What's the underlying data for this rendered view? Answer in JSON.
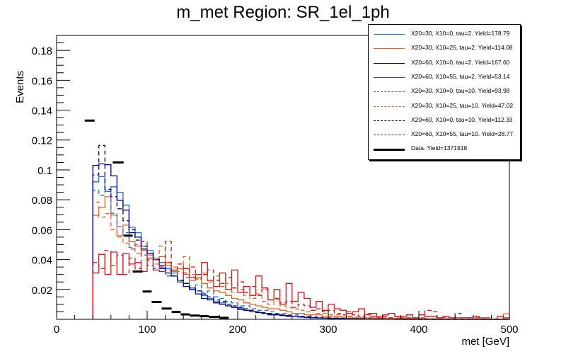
{
  "chart_data": {
    "type": "histogram",
    "title": "m_met Region: SR_1el_1ph",
    "xlabel": "met [GeV]",
    "ylabel": "Events",
    "xlim": [
      0,
      500
    ],
    "ylim": [
      0,
      0.19
    ],
    "xticks": [
      0,
      100,
      200,
      300,
      400,
      500
    ],
    "xtick_labels": [
      "0",
      "100",
      "200",
      "300",
      "400",
      "500"
    ],
    "yticks": [
      0.02,
      0.04,
      0.06,
      0.08,
      0.1,
      0.12,
      0.14,
      0.16,
      0.18
    ],
    "ytick_labels": [
      "0.02",
      "0.04",
      "0.06",
      "0.08",
      "0.1",
      "0.12",
      "0.14",
      "0.16",
      "0.18"
    ],
    "grid": false,
    "legend_position": "top-right",
    "bin_start": 40,
    "bin_width": 6.6667,
    "series": [
      {
        "name": "X20=30, X10=0, tau=2. Yield=178.79",
        "color": "#1f6fd6",
        "style": "solid",
        "values": [
          0.092,
          0.0955,
          0.0856,
          0.0887,
          0.085,
          0.0764,
          0.0616,
          0.058,
          0.049,
          0.046,
          0.041,
          0.038,
          0.034,
          0.031,
          0.026,
          0.024,
          0.021,
          0.019,
          0.016,
          0.014,
          0.012,
          0.011,
          0.009,
          0.008,
          0.0075,
          0.006,
          0.005,
          0.0045,
          0.004,
          0.0035,
          0.003,
          0.0025,
          0.002,
          0.002,
          0.0015,
          0.0012,
          0.001,
          0.001,
          0.0008,
          0.0006,
          0.0005,
          0.0005,
          0.0004,
          0.0003,
          0.0003,
          0.0002,
          0.0002,
          0.0001,
          0.0001,
          0.0001,
          0,
          0,
          0,
          0,
          0,
          0,
          0,
          0,
          0,
          0,
          0,
          0,
          0,
          0,
          0,
          0,
          0,
          0,
          0
        ]
      },
      {
        "name": "X20=30, X10=25, tau=2. Yield=114.08",
        "color": "#e8641a",
        "style": "solid",
        "values": [
          0.0696,
          0.0748,
          0.082,
          0.0697,
          0.056,
          0.063,
          0.052,
          0.049,
          0.046,
          0.043,
          0.04,
          0.042,
          0.036,
          0.032,
          0.034,
          0.03,
          0.026,
          0.028,
          0.024,
          0.021,
          0.019,
          0.018,
          0.016,
          0.014,
          0.013,
          0.011,
          0.01,
          0.009,
          0.008,
          0.007,
          0.007,
          0.006,
          0.005,
          0.004,
          0.004,
          0.003,
          0.003,
          0.003,
          0.002,
          0.002,
          0.002,
          0.0015,
          0.0015,
          0.001,
          0.001,
          0.001,
          0.0008,
          0.0008,
          0.0006,
          0.0006,
          0.0005,
          0.0005,
          0.0004,
          0.0004,
          0.0003,
          0.0003,
          0.0002,
          0.0002,
          0.0001,
          0.0001,
          0.0001,
          0.0001,
          0.0002,
          0.0001,
          0.0001,
          0.0001,
          0.0001,
          0.0001,
          0.0036
        ]
      },
      {
        "name": "X20=60, X10=0, tau=2. Yield=167.60",
        "color": "#000080",
        "style": "solid",
        "values": [
          0.103,
          0.104,
          0.1035,
          0.096,
          0.0796,
          0.073,
          0.058,
          0.055,
          0.047,
          0.044,
          0.04,
          0.034,
          0.031,
          0.029,
          0.025,
          0.022,
          0.02,
          0.017,
          0.014,
          0.013,
          0.011,
          0.01,
          0.009,
          0.008,
          0.0065,
          0.006,
          0.005,
          0.0045,
          0.004,
          0.003,
          0.003,
          0.0025,
          0.002,
          0.002,
          0.0015,
          0.0012,
          0.001,
          0.0009,
          0.0008,
          0.0006,
          0.0005,
          0.0004,
          0.0004,
          0.0003,
          0.0003,
          0.0002,
          0.0002,
          0.0001,
          0.0001,
          0.0001,
          0,
          0,
          0,
          0,
          0,
          0,
          0,
          0,
          0,
          0,
          0,
          0,
          0,
          0,
          0,
          0,
          0,
          0,
          0
        ]
      },
      {
        "name": "X20=60, X10=55, tau=2. Yield=53.14",
        "color": "#dd1111",
        "style": "solid",
        "values": [
          0.031,
          0.0435,
          0.03,
          0.045,
          0.03,
          0.044,
          0.037,
          0.038,
          0.032,
          0.041,
          0.033,
          0.032,
          0.038,
          0.033,
          0.025,
          0.034,
          0.028,
          0.03,
          0.038,
          0.026,
          0.022,
          0.031,
          0.02,
          0.033,
          0.018,
          0.022,
          0.016,
          0.029,
          0.021,
          0.013,
          0.02,
          0.01,
          0.024,
          0.012,
          0.018,
          0.014,
          0.008,
          0.012,
          0.006,
          0.01,
          0.007,
          0.006,
          0.004,
          0.005,
          0.007,
          0.003,
          0.004,
          0.002,
          0.003,
          0.004,
          0.002,
          0.002,
          0.003,
          0.001,
          0.003,
          0.002,
          0.002,
          0.001,
          0.002,
          0.001,
          0.001,
          0.001,
          0.001,
          0.002,
          0.001,
          0,
          0,
          0.002,
          0.001
        ]
      },
      {
        "name": "X20=30, X10=0, tau=10. Yield=93.98",
        "color": "#1f6fd6",
        "style": "dashed",
        "values": [
          0.0864,
          0.083,
          0.0856,
          0.071,
          0.062,
          0.058,
          0.047,
          0.05,
          0.043,
          0.039,
          0.034,
          0.036,
          0.029,
          0.031,
          0.025,
          0.028,
          0.021,
          0.023,
          0.018,
          0.019,
          0.015,
          0.014,
          0.012,
          0.011,
          0.009,
          0.009,
          0.007,
          0.006,
          0.006,
          0.005,
          0.004,
          0.004,
          0.003,
          0.003,
          0.002,
          0.002,
          0.002,
          0.0015,
          0.001,
          0.001,
          0.001,
          0.0008,
          0.0006,
          0.0005,
          0.0004,
          0.0004,
          0.0003,
          0.0003,
          0.0002,
          0.0002,
          0.0001,
          0.0001,
          0.0001,
          0,
          0,
          0,
          0,
          0,
          0,
          0,
          0,
          0,
          0,
          0,
          0,
          0,
          0,
          0,
          0
        ]
      },
      {
        "name": "X20=30, X10=25, tau=10. Yield=47.02",
        "color": "#e8641a",
        "style": "dashed",
        "values": [
          0.0785,
          0.0683,
          0.0707,
          0.06,
          0.055,
          0.051,
          0.048,
          0.044,
          0.046,
          0.04,
          0.037,
          0.049,
          0.038,
          0.035,
          0.032,
          0.042,
          0.03,
          0.027,
          0.031,
          0.025,
          0.029,
          0.022,
          0.024,
          0.018,
          0.02,
          0.016,
          0.014,
          0.017,
          0.012,
          0.01,
          0.013,
          0.009,
          0.008,
          0.007,
          0.006,
          0.005,
          0.006,
          0.004,
          0.004,
          0.003,
          0.003,
          0.003,
          0.002,
          0.002,
          0.002,
          0.0015,
          0.0015,
          0.001,
          0.001,
          0.001,
          0.001,
          0.0008,
          0.0008,
          0.0006,
          0.0006,
          0.0005,
          0.0004,
          0.0004,
          0.0003,
          0.0003,
          0.0002,
          0.0002,
          0.0001,
          0.0001,
          0.0001,
          0.0001,
          0.0001,
          0.0001,
          0.0001
        ]
      },
      {
        "name": "X20=60, X10=0, tau=10. Yield=112.33",
        "color": "#000080",
        "style": "dashed",
        "values": [
          0.0966,
          0.1164,
          0.087,
          0.082,
          0.074,
          0.066,
          0.06,
          0.053,
          0.049,
          0.044,
          0.04,
          0.036,
          0.033,
          0.029,
          0.026,
          0.024,
          0.021,
          0.019,
          0.017,
          0.015,
          0.013,
          0.012,
          0.01,
          0.009,
          0.008,
          0.007,
          0.006,
          0.005,
          0.0045,
          0.004,
          0.0035,
          0.003,
          0.0025,
          0.002,
          0.0018,
          0.0015,
          0.0012,
          0.001,
          0.0009,
          0.0008,
          0.0006,
          0.0005,
          0.0004,
          0.0004,
          0.0003,
          0.0003,
          0.0002,
          0.0002,
          0.0001,
          0.0001,
          0.0001,
          0,
          0,
          0,
          0,
          0,
          0,
          0,
          0,
          0,
          0,
          0,
          0,
          0,
          0,
          0,
          0,
          0,
          0
        ]
      },
      {
        "name": "X20=60, X10=55, tau=10. Yield=28.77",
        "color": "#dd1111",
        "style": "dashed",
        "values": [
          0.038,
          0.034,
          0.046,
          0.036,
          0.043,
          0.03,
          0.041,
          0.034,
          0.052,
          0.036,
          0.04,
          0.035,
          0.052,
          0.033,
          0.037,
          0.031,
          0.035,
          0.027,
          0.03,
          0.033,
          0.026,
          0.024,
          0.028,
          0.021,
          0.025,
          0.018,
          0.022,
          0.016,
          0.02,
          0.013,
          0.014,
          0.011,
          0.012,
          0.008,
          0.01,
          0.009,
          0.006,
          0.007,
          0.005,
          0.006,
          0.004,
          0.003,
          0.005,
          0.003,
          0.002,
          0.004,
          0.002,
          0.001,
          0.002,
          0.001,
          0.002,
          0.001,
          0.001,
          0.001,
          0.001,
          0.006,
          0.005,
          0.001,
          0.001,
          0.001,
          0.004,
          0.001,
          0.001,
          0.001,
          0,
          0.001,
          0,
          0,
          0
        ]
      }
    ],
    "data": {
      "name": "Data. Yield=1371918",
      "color": "#000000",
      "points": [
        {
          "x0": 31,
          "x1": 42,
          "y": 0.133
        },
        {
          "x0": 62,
          "x1": 74,
          "y": 0.105
        },
        {
          "x0": 74,
          "x1": 84,
          "y": 0.056
        },
        {
          "x0": 84,
          "x1": 95,
          "y": 0.032
        },
        {
          "x0": 95,
          "x1": 105,
          "y": 0.0186
        },
        {
          "x0": 105,
          "x1": 116,
          "y": 0.0116
        },
        {
          "x0": 116,
          "x1": 127,
          "y": 0.0072
        },
        {
          "x0": 127,
          "x1": 137,
          "y": 0.0049
        },
        {
          "x0": 137,
          "x1": 147,
          "y": 0.0033
        },
        {
          "x0": 147,
          "x1": 158,
          "y": 0.0025
        },
        {
          "x0": 158,
          "x1": 168,
          "y": 0.0021
        },
        {
          "x0": 168,
          "x1": 180,
          "y": 0.0016
        },
        {
          "x0": 180,
          "x1": 190,
          "y": 0.001
        }
      ]
    }
  }
}
